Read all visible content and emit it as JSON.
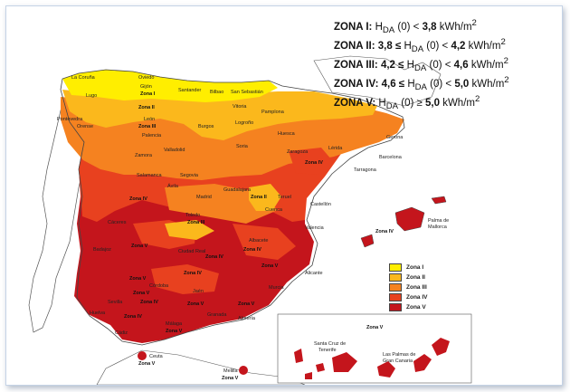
{
  "zones": [
    {
      "name": "ZONA I:",
      "sym": "H",
      "sub": "DA",
      "expr": " (0) < ",
      "value": "3,8",
      "unit": " kWh/m",
      "sup": "2"
    },
    {
      "name": "ZONA II:",
      "pre": "3,8 ≤ ",
      "sym": "H",
      "sub": "DA",
      "expr": " (0) < ",
      "value": "4,2",
      "unit": " kWh/m",
      "sup": "2"
    },
    {
      "name": "ZONA III:",
      "pre": "4,2 ≤ ",
      "sym": "H",
      "sub": "DA",
      "expr": " (0) < ",
      "value": "4,6",
      "unit": " kWh/m",
      "sup": "2"
    },
    {
      "name": "ZONA IV:",
      "pre": "4,6 ≤ ",
      "sym": "H",
      "sub": "DA",
      "expr": " (0) < ",
      "value": "5,0",
      "unit": " kWh/m",
      "sup": "2"
    },
    {
      "name": "ZONA V:",
      "sym": "H",
      "sub": "DA",
      "expr": " (0) ≥ ",
      "value": "5,0",
      "unit": " kWh/m",
      "sup": "2"
    }
  ],
  "legend": [
    {
      "label": "Zona I",
      "color": "#ffee00"
    },
    {
      "label": "Zona II",
      "color": "#fbb81c"
    },
    {
      "label": "Zona III",
      "color": "#f58220"
    },
    {
      "label": "Zona IV",
      "color": "#e8411f"
    },
    {
      "label": "Zona V",
      "color": "#c4151c"
    }
  ],
  "colors": {
    "zona1": "#ffee00",
    "zona2": "#fbb81c",
    "zona3": "#f58220",
    "zona4": "#e8411f",
    "zona5": "#c4151c"
  },
  "cities": {
    "la_coruna": "La Coruña",
    "oviedo": "Oviedo",
    "gijon": "Gijón",
    "lugo": "Lugo",
    "santander": "Santander",
    "bilbao": "Bilbao",
    "san_sebastian": "San Sebastián",
    "pontevedra": "Pontevedra",
    "orense": "Orense",
    "vitoria": "Vitoria",
    "pamplona": "Pamplona",
    "leon": "León",
    "palencia": "Palencia",
    "burgos": "Burgos",
    "logrono": "Logroño",
    "huesca": "Huesca",
    "gerona": "Gerona",
    "zamora": "Zamora",
    "valladolid": "Valladolid",
    "soria": "Soria",
    "zaragoza": "Zaragoza",
    "lerida": "Lérida",
    "barcelona": "Barcelona",
    "tarragona": "Tarragona",
    "salamanca": "Salamanca",
    "segovia": "Segovia",
    "avila": "Ávila",
    "madrid": "Madrid",
    "guadalajara": "Guadalajara",
    "teruel": "Teruel",
    "cuenca": "Cuenca",
    "castellon": "Castellón",
    "toledo": "Toledo",
    "caceres": "Cáceres",
    "valencia": "Valencia",
    "badajoz": "Badajoz",
    "ciudad_real": "Ciudad Real",
    "albacete": "Albacete",
    "alicante": "Alicante",
    "cordoba": "Córdoba",
    "jaen": "Jaén",
    "murcia": "Murcia",
    "sevilla": "Sevilla",
    "granada": "Granada",
    "huelva": "Huelva",
    "almeria": "Almería",
    "malaga": "Málaga",
    "cadiz": "Cádiz",
    "ceuta": "Ceuta",
    "melilla": "Melilla",
    "palma": "Palma de",
    "mallorca": "Mallorca",
    "santa_cruz": "Santa Cruz de",
    "tenerife": "Tenerife",
    "las_palmas": "Las Palmas de",
    "gran_canaria": "Gran Canaria"
  },
  "zone_labels": {
    "z1": "Zona I",
    "z2a": "Zona II",
    "z2b": "Zona II",
    "z3a": "Zona III",
    "z3b": "Zona III",
    "z4a": "Zona IV",
    "z4b": "Zona IV",
    "z4c": "Zona IV",
    "z4d": "Zona IV",
    "z4e": "Zona IV",
    "z4f": "Zona IV",
    "z4g": "Zona IV",
    "z4h": "Zona IV",
    "z5a": "Zona V",
    "z5b": "Zona V",
    "z5c": "Zona V",
    "z5d": "Zona V",
    "z5e": "Zona V",
    "z5f": "Zona V",
    "z5g": "Zona V",
    "canarias": "Zona V",
    "ceuta": "Zona V",
    "melilla": "Zona V"
  }
}
